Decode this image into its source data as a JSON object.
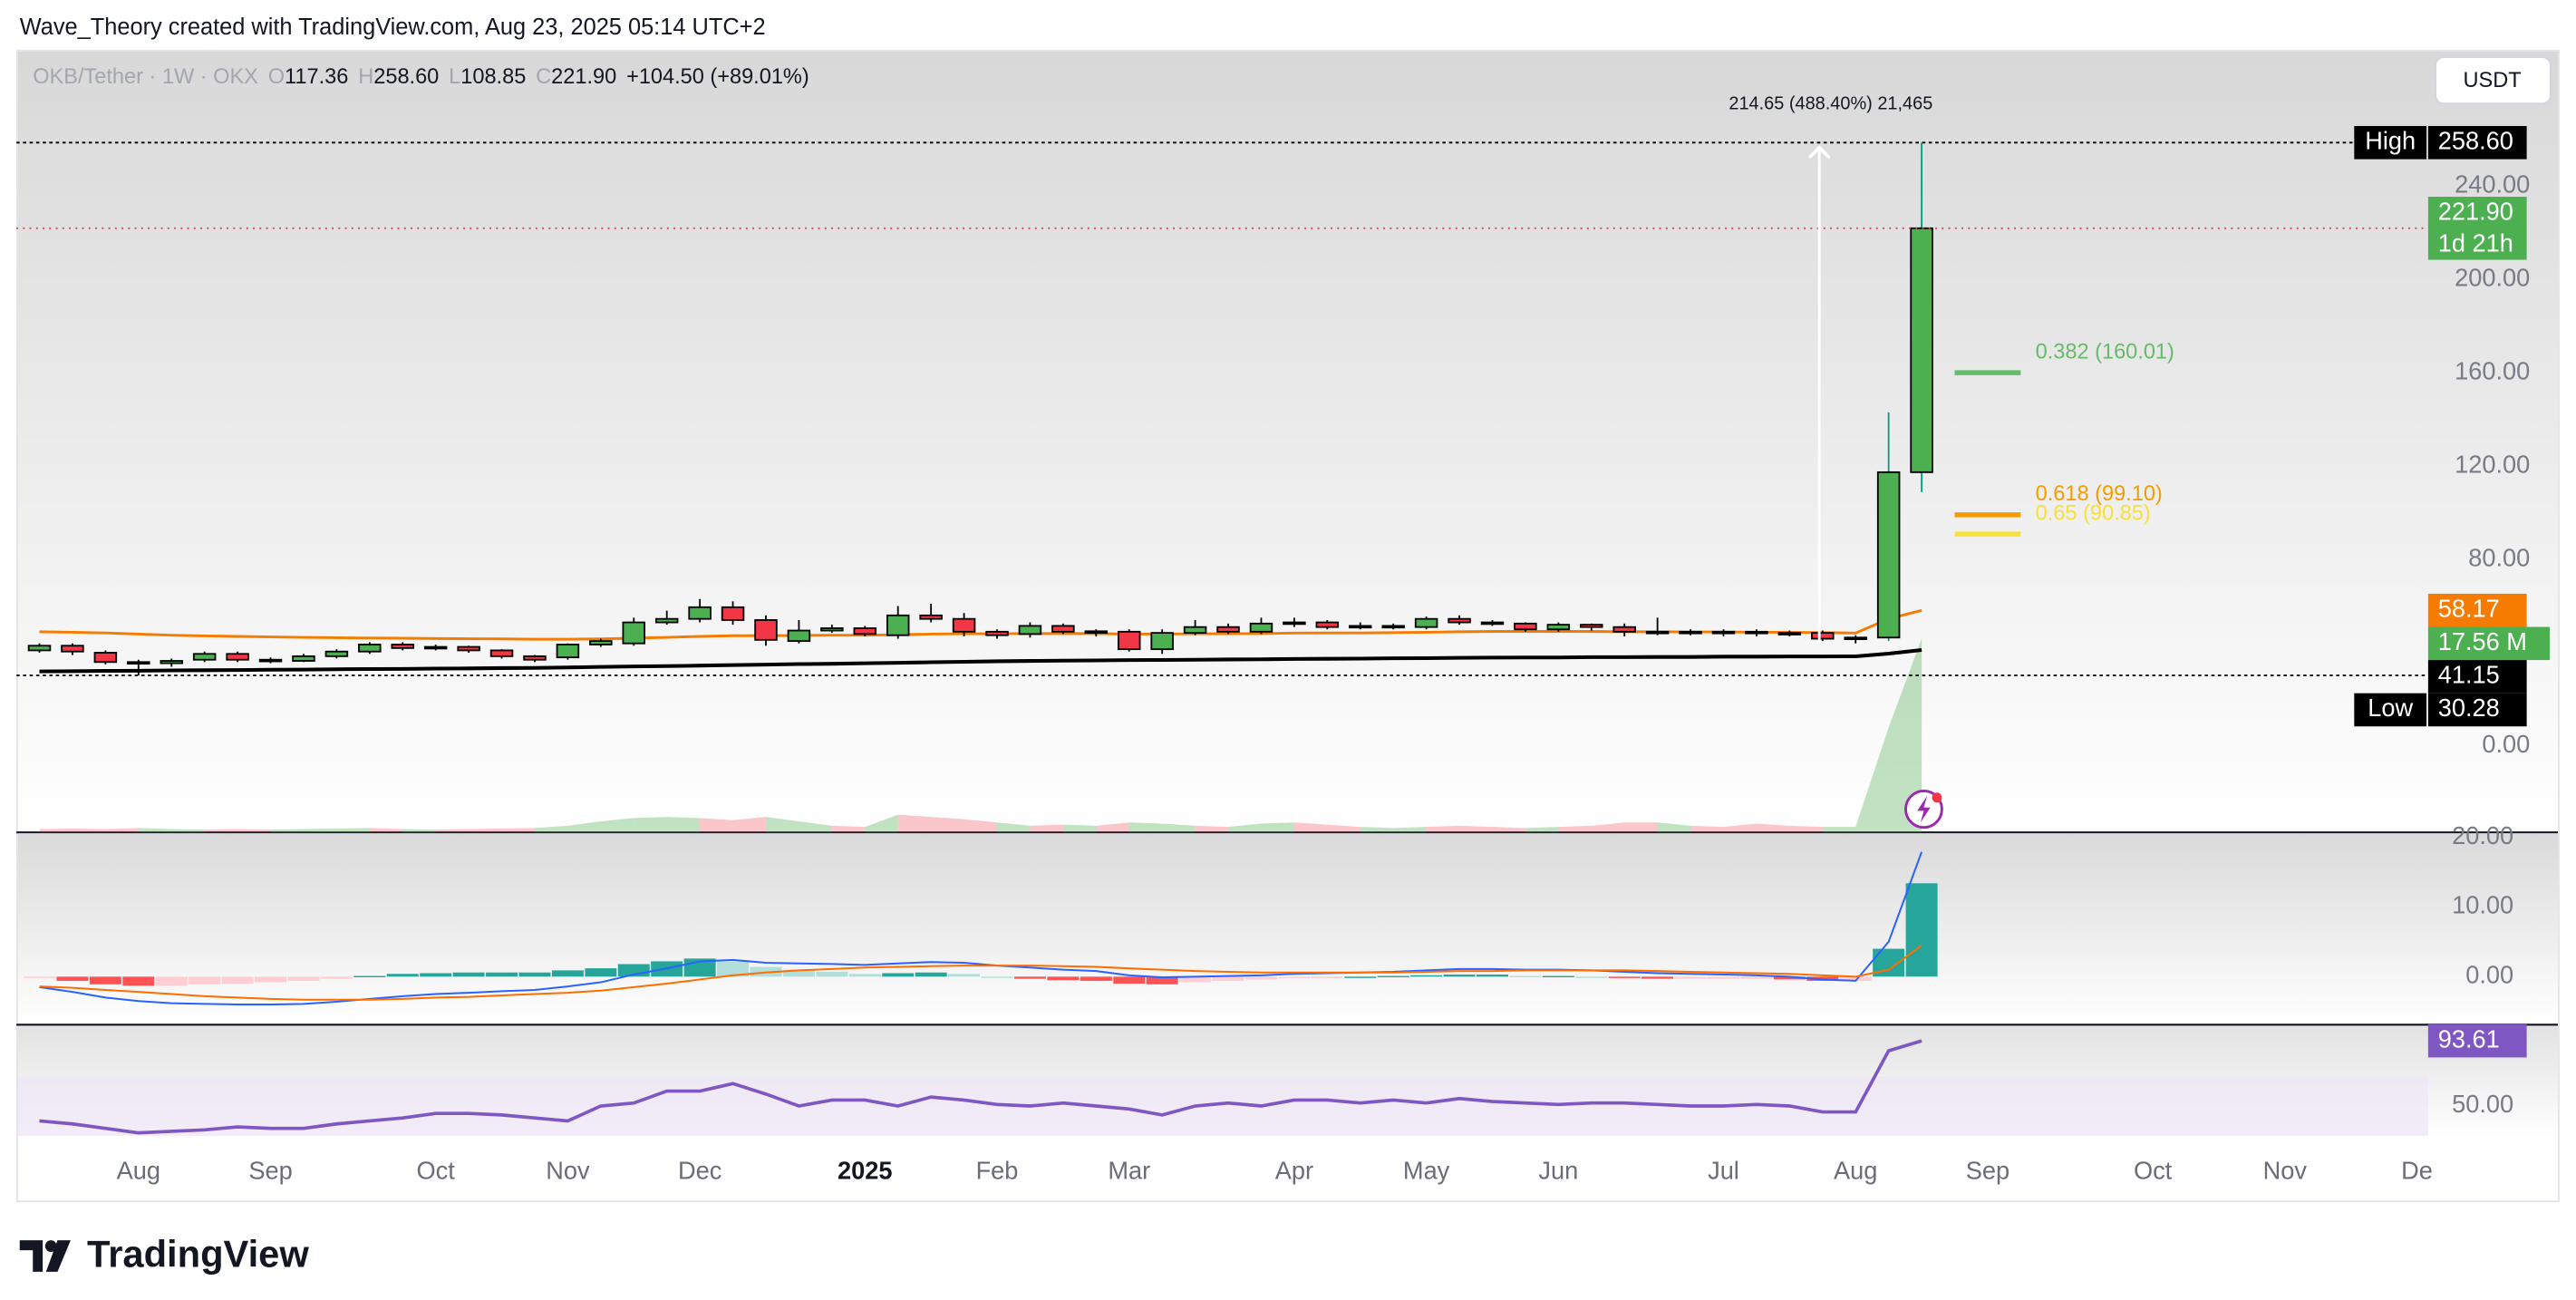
{
  "header": {
    "attribution": "Wave_Theory created with TradingView.com, Aug 23, 2025 05:14 UTC+2",
    "symbol": "OKB/Tether · 1W · OKX",
    "ohlc": [
      {
        "key": "O",
        "value": "117.36"
      },
      {
        "key": "H",
        "value": "258.60"
      },
      {
        "key": "L",
        "value": "108.85"
      },
      {
        "key": "C",
        "value": "221.90"
      }
    ],
    "change": "+104.50 (+89.01%)",
    "currency": "USDT"
  },
  "chart_data": {
    "type": "candlestick",
    "categories": [
      null,
      null,
      null,
      "Aug",
      null,
      null,
      null,
      "Sep",
      null,
      null,
      null,
      null,
      "Oct",
      null,
      null,
      null,
      "Nov",
      null,
      null,
      null,
      "Dec",
      null,
      null,
      null,
      null,
      "2025",
      null,
      null,
      null,
      "Feb",
      null,
      null,
      null,
      "Mar",
      null,
      null,
      null,
      null,
      "Apr",
      null,
      null,
      null,
      "May",
      null,
      null,
      null,
      "Jun",
      null,
      null,
      null,
      null,
      "Jul",
      null,
      null,
      null,
      "Aug",
      null,
      null,
      null,
      "Sep",
      null,
      null,
      null,
      null,
      "Oct",
      null,
      null,
      null,
      "Nov",
      null,
      null,
      null,
      "De"
    ],
    "open": [
      41,
      43,
      40,
      36,
      35.5,
      37,
      39.5,
      37,
      36.5,
      38.5,
      40.5,
      43.5,
      42,
      42.5,
      41,
      38.5,
      38,
      43.5,
      44,
      53,
      54.5,
      59.5,
      54,
      45,
      49.5,
      50.5,
      47.5,
      56,
      54.5,
      49,
      48,
      51.5,
      49,
      49,
      41.5,
      48.5,
      51,
      49,
      52.5,
      53,
      51.5,
      51,
      51,
      54.5,
      53,
      52.5,
      50,
      52,
      51,
      49,
      48.5,
      49,
      49,
      48.5,
      48.5,
      46,
      46.5,
      117.36,
      null,
      null,
      null,
      null,
      null,
      null,
      null,
      null,
      null,
      null,
      null,
      null,
      null,
      null,
      null
    ],
    "high": [
      44,
      44,
      41,
      37,
      37.5,
      40.5,
      40.5,
      38,
      39.5,
      41.5,
      44.5,
      44.5,
      43.5,
      43,
      41.5,
      39,
      44,
      46,
      55,
      58,
      63,
      62,
      56,
      54,
      52,
      51.5,
      60,
      61,
      57,
      50,
      53,
      52.5,
      50,
      50,
      50,
      54,
      52.5,
      55,
      55,
      54,
      53,
      52.5,
      55.5,
      56,
      54,
      53,
      53,
      52.5,
      52.5,
      55,
      50,
      50,
      50,
      49.5,
      49.5,
      47.5,
      143,
      258.6,
      null,
      null,
      null,
      null,
      null,
      null,
      null,
      null,
      null,
      null,
      null,
      null,
      null,
      null,
      null
    ],
    "low": [
      40,
      39,
      35,
      30.28,
      34,
      36,
      36,
      35.5,
      36,
      37.5,
      39.5,
      41,
      41,
      40,
      37.5,
      36,
      37,
      42.5,
      43,
      52,
      53,
      52,
      43,
      44,
      48.5,
      47,
      46,
      53,
      47,
      46,
      46.5,
      48,
      47,
      40.5,
      39.5,
      47.5,
      48,
      48,
      51,
      50,
      50,
      50,
      50,
      52,
      51.5,
      49,
      49,
      49.5,
      47,
      47.5,
      47.5,
      47,
      47,
      47,
      45,
      44,
      45,
      108.85,
      null,
      null,
      null,
      null,
      null,
      null,
      null,
      null,
      null,
      null,
      null,
      null,
      null,
      null,
      null
    ],
    "close": [
      43,
      40.5,
      36,
      35.5,
      36.5,
      39.5,
      37,
      36.5,
      38.5,
      40.5,
      43.5,
      42,
      42.5,
      41,
      38.5,
      37,
      43.5,
      45,
      53,
      54.5,
      59.5,
      54,
      45.5,
      49.5,
      50.5,
      48,
      56,
      54.5,
      49,
      47.5,
      51.5,
      49,
      49.2,
      41.5,
      48.5,
      51,
      49,
      52.5,
      53,
      51,
      51,
      51.5,
      54.5,
      53,
      52.5,
      50,
      52,
      51,
      49,
      48.5,
      49,
      48.8,
      48.5,
      48.2,
      46,
      46.5,
      117.36,
      221.9,
      null,
      null,
      null,
      null,
      null,
      null,
      null,
      null,
      null,
      null,
      null,
      null,
      null,
      null,
      null
    ],
    "up_color": "#4caf50",
    "down_color": "#f23645",
    "border_color": "#000000",
    "ylim": [
      -37,
      298.4
    ],
    "yticks": [
      {
        "value": 0,
        "label": "0.00"
      },
      {
        "value": 80,
        "label": "80.00"
      },
      {
        "value": 120,
        "label": "120.00"
      },
      {
        "value": 160,
        "label": "160.00"
      },
      {
        "value": 200,
        "label": "200.00"
      },
      {
        "value": 240,
        "label": "240.00"
      }
    ],
    "overlays": [
      {
        "color": "#f57c00",
        "label_last": true,
        "values": [
          49,
          48.8,
          48.5,
          48,
          47.5,
          47.2,
          47,
          46.8,
          46.6,
          46.4,
          46.3,
          46.2,
          46.1,
          46,
          45.9,
          45.8,
          45.8,
          45.9,
          46.2,
          46.6,
          47,
          47.3,
          47.3,
          47.4,
          47.5,
          47.5,
          47.7,
          48,
          48.1,
          48.1,
          48.2,
          48.2,
          48.2,
          48,
          48,
          48.1,
          48.1,
          48.2,
          48.4,
          48.5,
          48.5,
          48.6,
          48.8,
          49,
          49.1,
          49.1,
          49.1,
          49.1,
          49,
          49,
          48.9,
          48.9,
          48.8,
          48.8,
          48.6,
          48.4,
          54.5,
          58.17,
          null,
          null,
          null,
          null,
          null,
          null,
          null,
          null,
          null,
          null,
          null,
          null,
          null,
          null,
          null
        ]
      },
      {
        "color": "#000000",
        "label_last": true,
        "values": [
          32,
          32.1,
          32.2,
          32.3,
          32.4,
          32.5,
          32.6,
          32.7,
          32.8,
          32.9,
          33,
          33.1,
          33.2,
          33.3,
          33.4,
          33.5,
          33.7,
          33.9,
          34.1,
          34.3,
          34.5,
          34.7,
          34.9,
          35.1,
          35.3,
          35.5,
          35.7,
          35.9,
          36.1,
          36.3,
          36.5,
          36.6,
          36.7,
          36.8,
          36.9,
          37,
          37.1,
          37.2,
          37.3,
          37.4,
          37.5,
          37.6,
          37.7,
          37.8,
          37.9,
          38,
          38,
          38.1,
          38.1,
          38.2,
          38.2,
          38.3,
          38.3,
          38.4,
          38.4,
          38.5,
          39.6,
          41.15,
          null,
          null,
          null,
          null,
          null,
          null,
          null,
          null,
          null,
          null,
          null,
          null,
          null,
          null,
          null
        ]
      }
    ],
    "volume": {
      "ylim": [
        0,
        70.9
      ],
      "values": [
        0.3,
        0.35,
        0.3,
        0.4,
        0.3,
        0.25,
        0.3,
        0.25,
        0.3,
        0.35,
        0.4,
        0.3,
        0.25,
        0.3,
        0.35,
        0.4,
        0.6,
        1,
        1.3,
        1.4,
        1.3,
        1.1,
        1.4,
        1,
        0.6,
        0.5,
        1.6,
        1.4,
        1.2,
        0.9,
        0.6,
        0.7,
        0.6,
        0.9,
        0.8,
        0.6,
        0.5,
        0.8,
        0.9,
        0.7,
        0.5,
        0.4,
        0.5,
        0.6,
        0.5,
        0.4,
        0.5,
        0.6,
        0.9,
        0.9,
        0.6,
        0.5,
        0.8,
        0.6,
        0.5,
        0.5,
        9.5,
        17.56,
        null,
        null,
        null,
        null,
        null,
        null,
        null,
        null,
        null,
        null,
        null,
        null,
        null,
        null,
        null
      ],
      "last_label": "17.56 M"
    },
    "price_labels": [
      {
        "name": "High",
        "value": 258.6,
        "label": "258.60",
        "color": "#000000",
        "line_color": "#000000"
      },
      {
        "value": 221.9,
        "label": "221.90",
        "sublabel": "1d 21h",
        "color": "#4caf50",
        "line_color": "#f23645"
      },
      {
        "name": "Low",
        "value": 30.28,
        "label": "30.28",
        "color": "#000000",
        "line_color": "#000000"
      }
    ],
    "fib_levels": [
      {
        "label": "0.382 (160.01)",
        "value": 160.01,
        "color": "#66bb6a"
      },
      {
        "label": "0.618 (99.10)",
        "value": 99.1,
        "color": "#f59c00"
      },
      {
        "label": "0.65 (90.85)",
        "value": 90.85,
        "color": "#f7e03c"
      }
    ],
    "measure": {
      "label": "214.65 (488.40%) 21,465",
      "from": 43.95,
      "to": 258.6
    },
    "panes": [
      {
        "type": "macd",
        "ylim": [
          -6.9,
          20.7
        ],
        "yticks": [
          {
            "value": 0,
            "label": "0.00"
          },
          {
            "value": 10,
            "label": "10.00"
          },
          {
            "value": 20,
            "label": "20.00"
          }
        ],
        "series": [
          {
            "color": "#2962ff",
            "values": [
              -1.5,
              -2.2,
              -3,
              -3.5,
              -3.8,
              -3.9,
              -4,
              -4,
              -3.9,
              -3.6,
              -3.2,
              -2.8,
              -2.5,
              -2.3,
              -2.1,
              -1.9,
              -1.4,
              -0.8,
              0.3,
              1.2,
              2.2,
              2.4,
              2,
              1.9,
              1.8,
              1.7,
              1.9,
              2.1,
              2,
              1.6,
              1.3,
              1,
              0.8,
              0.2,
              -0.1,
              0,
              0.1,
              0.2,
              0.4,
              0.5,
              0.6,
              0.7,
              0.9,
              1.1,
              1.1,
              1,
              1,
              0.9,
              0.7,
              0.5,
              0.4,
              0.3,
              0.2,
              0,
              -0.4,
              -0.6,
              5,
              17.9,
              null,
              null,
              null,
              null,
              null,
              null,
              null,
              null,
              null,
              null,
              null,
              null,
              null,
              null,
              null
            ]
          },
          {
            "color": "#ff6d00",
            "values": [
              -1.4,
              -1.6,
              -1.9,
              -2.2,
              -2.5,
              -2.8,
              -3,
              -3.2,
              -3.3,
              -3.3,
              -3.3,
              -3.2,
              -3,
              -2.9,
              -2.7,
              -2.5,
              -2.3,
              -2,
              -1.5,
              -1,
              -0.4,
              0.2,
              0.6,
              0.9,
              1.1,
              1.3,
              1.4,
              1.5,
              1.6,
              1.6,
              1.6,
              1.5,
              1.4,
              1.2,
              1,
              0.8,
              0.7,
              0.6,
              0.6,
              0.6,
              0.6,
              0.6,
              0.7,
              0.8,
              0.8,
              0.9,
              0.9,
              0.9,
              0.9,
              0.8,
              0.7,
              0.6,
              0.5,
              0.4,
              0.2,
              0,
              1,
              4.5,
              null,
              null,
              null,
              null,
              null,
              null,
              null,
              null,
              null,
              null,
              null,
              null,
              null,
              null,
              null
            ]
          }
        ],
        "histogram": {
          "colors": [
            "#26a69a",
            "#b2dfdb",
            "#ffcdd2",
            "#ff5252"
          ],
          "values": [
            -0.1,
            -0.6,
            -1.1,
            -1.3,
            -1.3,
            -1.1,
            -1,
            -0.8,
            -0.6,
            -0.3,
            0.1,
            0.4,
            0.5,
            0.6,
            0.6,
            0.6,
            0.9,
            1.2,
            1.8,
            2.2,
            2.6,
            2.2,
            1.4,
            1,
            0.7,
            0.4,
            0.5,
            0.6,
            0.4,
            0,
            -0.3,
            -0.5,
            -0.6,
            -1,
            -1.1,
            -0.8,
            -0.6,
            -0.4,
            -0.2,
            -0.1,
            0,
            0.1,
            0.2,
            0.3,
            0.3,
            0.1,
            0.1,
            0,
            -0.2,
            -0.3,
            -0.3,
            -0.3,
            -0.3,
            -0.4,
            -0.6,
            -0.6,
            4,
            13.4,
            null,
            null,
            null,
            null,
            null,
            null,
            null,
            null,
            null,
            null,
            null,
            null,
            null,
            null,
            null
          ]
        }
      },
      {
        "type": "rsi",
        "ylim": [
          28.9,
          104.4
        ],
        "yticks": [
          {
            "value": 50,
            "label": "50.00"
          }
        ],
        "band": [
          30,
          70
        ],
        "band_color": "#ede7f6",
        "series": [
          {
            "color": "#7e57c2",
            "label_last": true,
            "values": [
              40,
              38,
              35,
              32,
              33,
              34,
              36,
              35,
              35,
              38,
              40,
              42,
              45,
              45,
              44,
              42,
              40,
              50,
              52,
              60,
              60,
              65,
              58,
              50,
              54,
              54,
              50,
              56,
              54,
              51,
              50,
              52,
              50,
              48,
              44,
              50,
              52,
              50,
              54,
              54,
              52,
              54,
              52,
              55,
              53,
              52,
              51,
              52,
              52,
              51,
              50,
              50,
              51,
              50,
              46,
              46,
              87,
              93.61,
              null,
              null,
              null,
              null,
              null,
              null,
              null,
              null,
              null,
              null,
              null,
              null,
              null,
              null,
              null
            ]
          }
        ]
      }
    ]
  },
  "footer": {
    "logo": "TradingView"
  }
}
